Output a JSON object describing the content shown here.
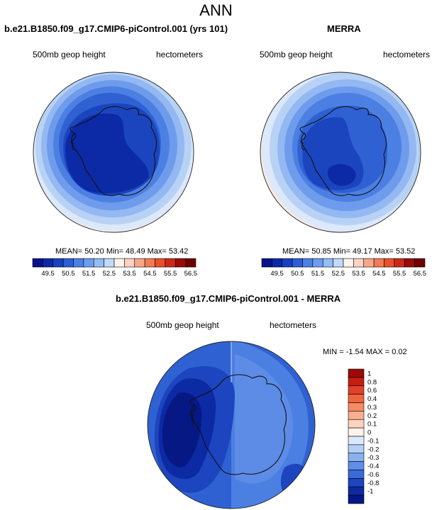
{
  "page_title": "ANN",
  "panels": [
    {
      "title": "b.e21.B1850.f09_g17.CMIP6-piControl.001 (yrs 101)",
      "left_label": "500mb geop height",
      "right_label": "hectometers",
      "stats": "MEAN= 50.20  Min= 48.49  Max= 53.42"
    },
    {
      "title": "MERRA",
      "left_label": "500mb geop height",
      "right_label": "hectometers",
      "stats": "MEAN= 50.85  Min= 49.17  Max= 53.52"
    },
    {
      "title": "b.e21.B1850.f09_g17.CMIP6-piControl.001 - MERRA",
      "left_label": "500mb geop height",
      "right_label": "hectometers",
      "stats": "MIN =  -1.54 MAX =   0.02"
    }
  ],
  "colorbar_top": {
    "ticks": [
      "49.5",
      "50.5",
      "51.5",
      "52.5",
      "53.5",
      "54.5",
      "55.5",
      "56.5"
    ],
    "colors": [
      "#08128e",
      "#0a28a8",
      "#1641c2",
      "#2b5fd8",
      "#4a80e6",
      "#6b9df0",
      "#95bdf5",
      "#c2d9fa",
      "#fff3ec",
      "#fbd3c3",
      "#f7a68a",
      "#f47a55",
      "#ea4f2c",
      "#cc2a16",
      "#9c0a08",
      "#6f0000"
    ]
  },
  "colorbar_diff": {
    "ticks": [
      "1",
      "0.8",
      "0.6",
      "0.4",
      "0.3",
      "0.2",
      "0.1",
      "0",
      "-0.1",
      "-0.2",
      "-0.3",
      "-0.4",
      "-0.6",
      "-0.8",
      "-1"
    ],
    "colors": [
      "#9c0a08",
      "#c41e12",
      "#e0412a",
      "#f0663f",
      "#f68a63",
      "#f9ae8f",
      "#fcd3bf",
      "#fff3ec",
      "#dbe9fc",
      "#b3cff6",
      "#89b1f0",
      "#5f8ee6",
      "#3a6bd8",
      "#1c45bf",
      "#0c2aa3",
      "#061884"
    ]
  }
}
